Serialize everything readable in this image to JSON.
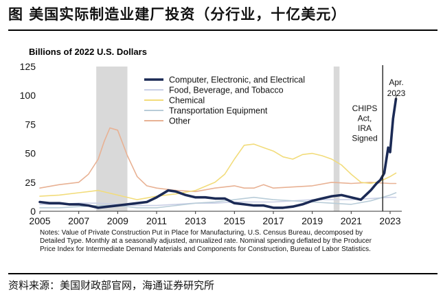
{
  "header": {
    "title": "图 美国实际制造业建厂投资（分行业，十亿美元）"
  },
  "source": "资料来源：美国财政部官网，海通证券研究所",
  "notes": [
    "Notes: Value of Private Construction Put in Place for Manufacturing, U.S. Census Bureau, decomposed by",
    "Detailed Type. Monthly at a seasonally adjusted, annualized rate. Nominal spending deflated by the Producer",
    "Price Index for Intermediate Demand Materials and Components for Construction, Bureau of Labor Statistics."
  ],
  "chart_data": {
    "type": "line",
    "title": "",
    "ylabel": "Billions of 2022 U.S. Dollars",
    "xlabel": "",
    "xlim": [
      2005,
      2023.6
    ],
    "ylim": [
      0,
      125
    ],
    "yticks": [
      0,
      25,
      50,
      75,
      100,
      125
    ],
    "xticks": [
      2005,
      2007,
      2009,
      2011,
      2013,
      2015,
      2017,
      2019,
      2021,
      2023
    ],
    "grid": false,
    "legend": "top-center",
    "recession_bands": [
      [
        2007.9,
        2009.5
      ],
      [
        2020.1,
        2020.4
      ]
    ],
    "annotations": [
      {
        "text": [
          "Apr.",
          "2023"
        ],
        "x": 2023.3,
        "y": 97
      },
      {
        "text": [
          "CHIPS",
          "Act,",
          "IRA",
          "Signed"
        ],
        "x": 2022.6,
        "y": 52
      }
    ],
    "series": [
      {
        "name": "Computer, Electronic, and Electrical",
        "color": "#1b2a55",
        "x": [
          2005,
          2005.5,
          2006,
          2006.5,
          2007,
          2007.5,
          2008,
          2008.5,
          2009,
          2009.5,
          2010,
          2010.5,
          2011,
          2011.3,
          2011.6,
          2012,
          2012.5,
          2013,
          2013.5,
          2014,
          2014.5,
          2015,
          2015.5,
          2016,
          2016.5,
          2017,
          2017.5,
          2018,
          2018.5,
          2019,
          2019.5,
          2020,
          2020.5,
          2021,
          2021.5,
          2022,
          2022.3,
          2022.5,
          2022.7,
          2022.9,
          2023,
          2023.15,
          2023.3
        ],
        "y": [
          8,
          7,
          7,
          6,
          6,
          5,
          3,
          4,
          5,
          6,
          7,
          8,
          12,
          15,
          18,
          17,
          14,
          12,
          12,
          11,
          11,
          7,
          6,
          5,
          5,
          3,
          3,
          4,
          6,
          9,
          11,
          13,
          14,
          12,
          10,
          18,
          24,
          27,
          33,
          55,
          51,
          80,
          97
        ]
      },
      {
        "name": "Food, Beverage, and Tobacco",
        "color": "#c9cfe6",
        "x": [
          2005,
          2006,
          2007,
          2008,
          2009,
          2010,
          2011,
          2012,
          2013,
          2014,
          2015,
          2016,
          2017,
          2018,
          2019,
          2020,
          2021,
          2022,
          2023,
          2023.3
        ],
        "y": [
          6,
          6,
          7,
          7,
          6,
          5,
          5,
          6,
          7,
          7,
          8,
          8,
          8,
          9,
          10,
          10,
          10,
          11,
          12,
          12
        ]
      },
      {
        "name": "Chemical",
        "color": "#f2dc7a",
        "x": [
          2005,
          2006,
          2007,
          2008,
          2009,
          2010,
          2011,
          2012,
          2013,
          2014,
          2014.5,
          2015,
          2015.5,
          2016,
          2016.5,
          2017,
          2017.5,
          2018,
          2018.5,
          2019,
          2019.5,
          2020,
          2020.5,
          2021,
          2021.5,
          2022,
          2022.5,
          2023,
          2023.3
        ],
        "y": [
          13,
          14,
          16,
          18,
          14,
          10,
          13,
          15,
          18,
          25,
          32,
          45,
          57,
          58,
          55,
          52,
          47,
          45,
          49,
          50,
          48,
          45,
          40,
          32,
          25,
          24,
          26,
          30,
          33
        ]
      },
      {
        "name": "Transportation Equipment",
        "color": "#b8ccd8",
        "x": [
          2005,
          2006,
          2007,
          2008,
          2009,
          2010,
          2011,
          2012,
          2013,
          2014,
          2015,
          2016,
          2017,
          2018,
          2019,
          2020,
          2021,
          2022,
          2023,
          2023.3
        ],
        "y": [
          3,
          3,
          4,
          5,
          5,
          3,
          3,
          5,
          7,
          8,
          10,
          12,
          10,
          9,
          8,
          7,
          6,
          9,
          14,
          16
        ]
      },
      {
        "name": "Other",
        "color": "#e8b193",
        "x": [
          2005,
          2006,
          2007,
          2007.5,
          2008,
          2008.3,
          2008.6,
          2009,
          2009.5,
          2010,
          2010.5,
          2011,
          2012,
          2013,
          2014,
          2015,
          2015.5,
          2016,
          2016.5,
          2017,
          2018,
          2019,
          2020,
          2021,
          2022,
          2023,
          2023.3
        ],
        "y": [
          20,
          23,
          25,
          32,
          45,
          60,
          72,
          70,
          48,
          30,
          22,
          20,
          18,
          17,
          20,
          22,
          20,
          20,
          23,
          20,
          21,
          22,
          25,
          24,
          25,
          24,
          24
        ]
      }
    ]
  }
}
